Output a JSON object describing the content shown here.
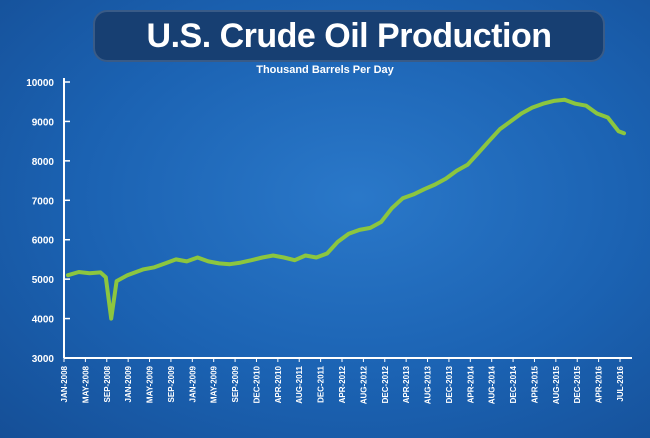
{
  "title": "U.S. Crude Oil Production",
  "subtitle": "Thousand Barrels Per Day",
  "colors": {
    "background": "#1b62b2",
    "line": "#8cc63f",
    "axis": "#ffffff",
    "title_pill": "#173f72"
  },
  "chart_data": {
    "type": "line",
    "title": "U.S. Crude Oil Production",
    "subtitle": "Thousand Barrels Per Day",
    "xlabel": "",
    "ylabel": "",
    "ylim": [
      3000,
      10000
    ],
    "yticks": [
      3000,
      4000,
      5000,
      6000,
      7000,
      8000,
      9000,
      10000
    ],
    "grid": false,
    "legend": "none",
    "xticks": [
      "JAN-2008",
      "MAY-2008",
      "SEP-2008",
      "JAN-2009",
      "MAY-2009",
      "SEP-2009",
      "JAN-2009",
      "MAY-2009",
      "SEP-2009",
      "DEC-2010",
      "APR-2010",
      "AUG-2011",
      "DEC-2011",
      "APR-2012",
      "AUG-2012",
      "DEC-2012",
      "APR-2013",
      "AUG-2013",
      "DEC-2013",
      "APR-2014",
      "AUG-2014",
      "DEC-2014",
      "APR-2015",
      "AUG-2015",
      "DEC-2015",
      "APR-2016",
      "JUL-2016"
    ],
    "x": [
      "2008-01",
      "2008-03",
      "2008-05",
      "2008-07",
      "2008-08",
      "2008-09",
      "2008-10",
      "2008-12",
      "2009-03",
      "2009-05",
      "2009-07",
      "2009-09",
      "2009-11",
      "2010-01",
      "2010-03",
      "2010-05",
      "2010-07",
      "2010-09",
      "2010-11",
      "2011-01",
      "2011-03",
      "2011-05",
      "2011-07",
      "2011-09",
      "2011-11",
      "2012-01",
      "2012-03",
      "2012-05",
      "2012-07",
      "2012-09",
      "2012-11",
      "2013-01",
      "2013-03",
      "2013-05",
      "2013-07",
      "2013-09",
      "2013-11",
      "2014-01",
      "2014-03",
      "2014-05",
      "2014-07",
      "2014-09",
      "2014-11",
      "2015-01",
      "2015-03",
      "2015-05",
      "2015-07",
      "2015-09",
      "2015-11",
      "2016-01",
      "2016-03",
      "2016-05",
      "2016-07",
      "2016-08"
    ],
    "series": [
      {
        "values": [
          5100,
          5180,
          5150,
          5170,
          5050,
          4000,
          4950,
          5100,
          5250,
          5300,
          5400,
          5500,
          5450,
          5550,
          5450,
          5400,
          5380,
          5420,
          5480,
          5550,
          5600,
          5550,
          5480,
          5600,
          5550,
          5650,
          5950,
          6150,
          6250,
          6300,
          6450,
          6800,
          7050,
          7150,
          7280,
          7400,
          7550,
          7750,
          7900,
          8200,
          8500,
          8800,
          9000,
          9200,
          9350,
          9450,
          9520,
          9550,
          9450,
          9400,
          9200,
          9100,
          8750,
          8700
        ]
      }
    ]
  }
}
